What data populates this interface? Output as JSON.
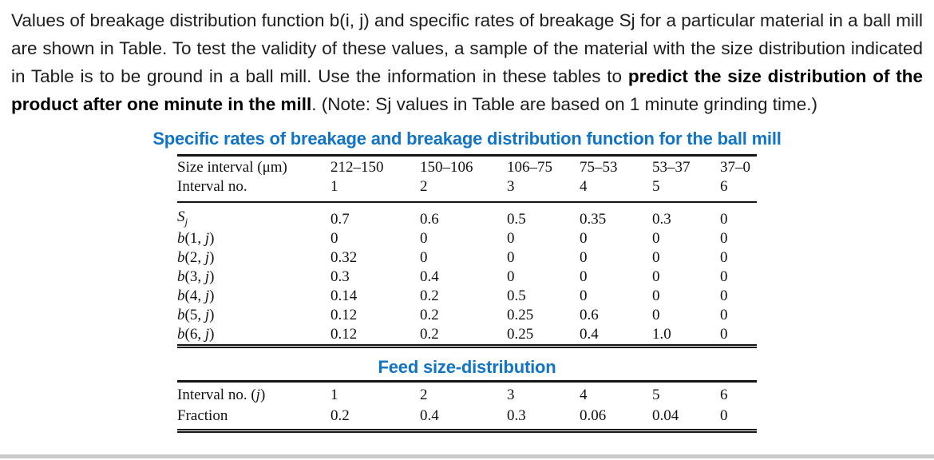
{
  "colors": {
    "accent_blue": "#1274c5",
    "body_text": "#1d1d1d",
    "bottom_bar_gray": "#cacaca"
  },
  "problem": {
    "text_before_bold": "Values of breakage distribution function b(i, j) and specific rates of breakage Sj for a particular material in a ball mill are shown in Table. To test the validity of these values, a sample of the material with the size distribution indicated in Table is to be ground in a ball mill. Use the information in these tables to ",
    "text_bold": "predict the size distribution of the product after one minute in the mill",
    "text_after_bold": ". (Note: Sj values in Table are based on 1 minute grinding time.)"
  },
  "breakage_table": {
    "title": "Specific rates of breakage and breakage distribution function for the ball mill",
    "size_row": {
      "label": "Size interval (μm)",
      "values": [
        "212–150",
        "150–106",
        "106–75",
        "75–53",
        "53–37",
        "37–0"
      ]
    },
    "interval_row": {
      "label": "Interval no.",
      "values": [
        "1",
        "2",
        "3",
        "4",
        "5",
        "6"
      ]
    },
    "rows": [
      {
        "label": {
          "main": "S",
          "sub": "j"
        },
        "values": [
          "0.7",
          "0.6",
          "0.5",
          "0.35",
          "0.3",
          "0"
        ]
      },
      {
        "label": {
          "it1": "b",
          "mid": "(1, ",
          "it2": "j",
          "post": ")"
        },
        "values": [
          "0",
          "0",
          "0",
          "0",
          "0",
          "0"
        ]
      },
      {
        "label": {
          "it1": "b",
          "mid": "(2, ",
          "it2": "j",
          "post": ")"
        },
        "values": [
          "0.32",
          "0",
          "0",
          "0",
          "0",
          "0"
        ]
      },
      {
        "label": {
          "it1": "b",
          "mid": "(3, ",
          "it2": "j",
          "post": ")"
        },
        "values": [
          "0.3",
          "0.4",
          "0",
          "0",
          "0",
          "0"
        ]
      },
      {
        "label": {
          "it1": "b",
          "mid": "(4, ",
          "it2": "j",
          "post": ")"
        },
        "values": [
          "0.14",
          "0.2",
          "0.5",
          "0",
          "0",
          "0"
        ]
      },
      {
        "label": {
          "it1": "b",
          "mid": "(5, ",
          "it2": "j",
          "post": ")"
        },
        "values": [
          "0.12",
          "0.2",
          "0.25",
          "0.6",
          "0",
          "0"
        ]
      },
      {
        "label": {
          "it1": "b",
          "mid": "(6, ",
          "it2": "j",
          "post": ")"
        },
        "values": [
          "0.12",
          "0.2",
          "0.25",
          "0.4",
          "1.0",
          "0"
        ]
      }
    ]
  },
  "feed_table": {
    "title": "Feed size-distribution",
    "interval_row": {
      "label": {
        "pre": "Interval no. (",
        "it": "j",
        "post": ")"
      },
      "values": [
        "1",
        "2",
        "3",
        "4",
        "5",
        "6"
      ]
    },
    "fraction_row": {
      "label": "Fraction",
      "values": [
        "0.2",
        "0.4",
        "0.3",
        "0.06",
        "0.04",
        "0"
      ]
    }
  }
}
